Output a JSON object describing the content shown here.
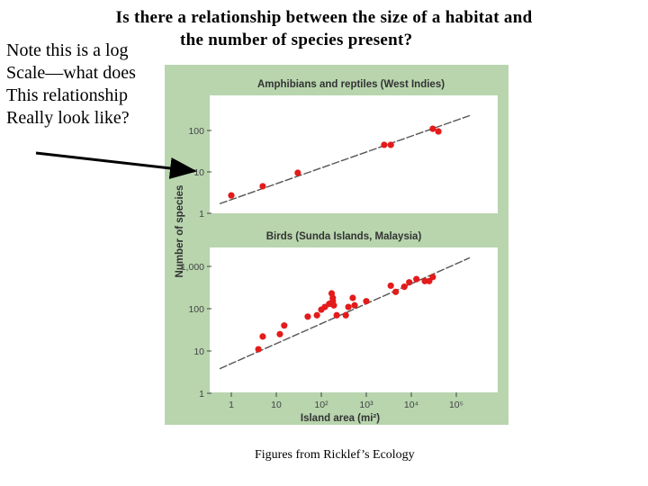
{
  "slide": {
    "title_line1": "Is there a relationship between the size of a habitat and",
    "title_line2": "the number of species present?",
    "note_lines": [
      "Note this is a log",
      "Scale—what does",
      "This relationship",
      "Really look like?"
    ],
    "caption": "Figures from Ricklef’s Ecology"
  },
  "colors": {
    "figure_background": "#b8d5ae",
    "plot_background": "#ffffff",
    "point_color": "#e31b1b",
    "fit_line": "#555555"
  },
  "chart_data": [
    {
      "type": "scatter",
      "title": "Amphibians and reptiles (West Indies)",
      "xlabel": "",
      "ylabel": "Number of species",
      "x_scale": "log",
      "y_scale": "log",
      "ylim": [
        1,
        1000
      ],
      "y_ticks": [
        "1",
        "10",
        "100"
      ],
      "x": [
        1,
        5,
        30,
        2500,
        3500,
        30000,
        40000
      ],
      "y": [
        2.7,
        4.5,
        9.5,
        45,
        45,
        110,
        95
      ],
      "fit_line": [
        [
          0.55,
          1.7
        ],
        [
          200000,
          230
        ]
      ]
    },
    {
      "type": "scatter",
      "title": "Birds (Sunda Islands, Malaysia)",
      "xlabel": "Island area (mi²)",
      "ylabel": "Number of species",
      "x_scale": "log",
      "y_scale": "log",
      "ylim": [
        1,
        10000
      ],
      "y_ticks": [
        "1",
        "10",
        "100",
        "1,000"
      ],
      "x_ticks": [
        "1",
        "10",
        "10²",
        "10³",
        "10⁴",
        "10⁵"
      ],
      "x": [
        4,
        5,
        12,
        15,
        50,
        80,
        100,
        120,
        150,
        170,
        180,
        180,
        190,
        220,
        350,
        400,
        500,
        550,
        1000,
        3500,
        4500,
        7000,
        9000,
        13000,
        20000,
        25000,
        30000
      ],
      "y": [
        11,
        22,
        25,
        40,
        65,
        70,
        95,
        110,
        130,
        230,
        180,
        150,
        120,
        70,
        70,
        110,
        180,
        120,
        150,
        350,
        250,
        330,
        420,
        500,
        450,
        450,
        560
      ],
      "fit_line": [
        [
          0.55,
          3.8
        ],
        [
          200000,
          1600
        ]
      ]
    }
  ]
}
